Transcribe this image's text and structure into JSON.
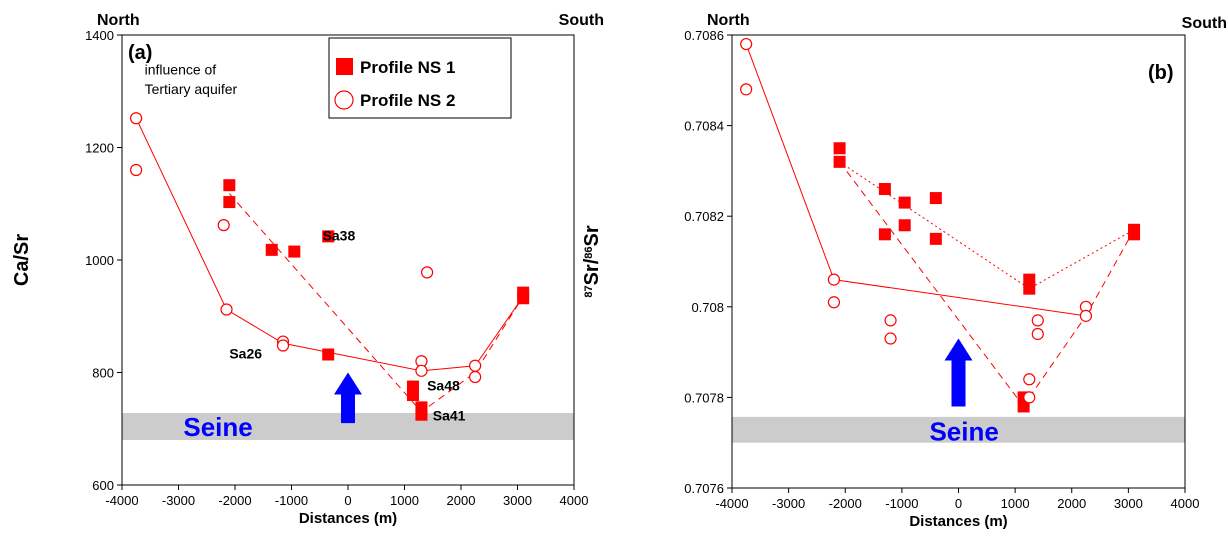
{
  "colors": {
    "data": "#ff0000",
    "seine_band": "#cccccc",
    "arrow": "#0000ff"
  },
  "legend": {
    "items": [
      "Profile NS 1",
      "Profile NS 2"
    ]
  },
  "chart_data": [
    {
      "type": "scatter",
      "panel_label": "(a)",
      "corner_left": "North",
      "corner_right": "South",
      "xlabel": "Distances (m)",
      "ylabel": "Ca/Sr",
      "xlim": [
        -4000,
        4000
      ],
      "ylim": [
        600,
        1400
      ],
      "xticks": [
        -4000,
        -3000,
        -2000,
        -1000,
        0,
        1000,
        2000,
        3000,
        4000
      ],
      "yticks": [
        600,
        800,
        1000,
        1200,
        1400
      ],
      "xtick_labels": [
        "-4000",
        "-3000",
        "-2000",
        "-1000",
        "0",
        "1000",
        "2000",
        "3000",
        "4000"
      ],
      "ytick_labels": [
        "600",
        "800",
        "1000",
        "1200",
        "1400"
      ],
      "seine_band": [
        680,
        728
      ],
      "seine_label": "Seine",
      "arrow": {
        "x": 0,
        "y_from": 710,
        "y_to": 800
      },
      "series": [
        {
          "marker": "square",
          "points": [
            [
              -2100,
              1133
            ],
            [
              -2100,
              1103
            ],
            [
              -1350,
              1018
            ],
            [
              -950,
              1015
            ],
            [
              -350,
              1042
            ],
            [
              -350,
              832
            ],
            [
              1150,
              775
            ],
            [
              1150,
              760
            ],
            [
              1300,
              738
            ],
            [
              1300,
              725
            ],
            [
              3100,
              942
            ],
            [
              3100,
              932
            ]
          ]
        },
        {
          "marker": "circle",
          "points": [
            [
              -3750,
              1252
            ],
            [
              -3750,
              1160
            ],
            [
              -2200,
              1062
            ],
            [
              -2150,
              912
            ],
            [
              -1150,
              855
            ],
            [
              -1150,
              848
            ],
            [
              1300,
              820
            ],
            [
              1300,
              803
            ],
            [
              1400,
              978
            ],
            [
              2250,
              812
            ],
            [
              2250,
              792
            ]
          ]
        }
      ],
      "lines": [
        {
          "style": "solid",
          "points": [
            [
              -3750,
              1252
            ],
            [
              -2150,
              912
            ],
            [
              -1150,
              852
            ],
            [
              1300,
              803
            ],
            [
              2250,
              812
            ],
            [
              3100,
              935
            ]
          ]
        },
        {
          "style": "dashed",
          "points": [
            [
              -2100,
              1118
            ],
            [
              1300,
              730
            ],
            [
              2250,
              800
            ],
            [
              3100,
              935
            ]
          ]
        }
      ],
      "annotations": [
        {
          "text": "influence of",
          "x": -3600,
          "y": 1330,
          "bold": false
        },
        {
          "text": "Tertiary aquifer",
          "x": -3600,
          "y": 1295,
          "bold": false
        },
        {
          "text": "Sa38",
          "x": -450,
          "y": 1035,
          "bold": true
        },
        {
          "text": "Sa26",
          "x": -2100,
          "y": 825,
          "bold": true
        },
        {
          "text": "Sa48",
          "x": 1400,
          "y": 768,
          "bold": true
        },
        {
          "text": "Sa41",
          "x": 1500,
          "y": 715,
          "bold": true
        }
      ]
    },
    {
      "type": "scatter",
      "panel_label": "(b)",
      "corner_left": "North",
      "corner_right": "South",
      "xlabel": "Distances (m)",
      "ylabel_pre": "87",
      "ylabel_mid": "Sr/",
      "ylabel_sup": "86",
      "ylabel_post": "Sr",
      "xlim": [
        -4000,
        4000
      ],
      "ylim": [
        0.7076,
        0.7086
      ],
      "xticks": [
        -4000,
        -3000,
        -2000,
        -1000,
        0,
        1000,
        2000,
        3000,
        4000
      ],
      "yticks": [
        0.7076,
        0.7078,
        0.708,
        0.7082,
        0.7084,
        0.7086
      ],
      "xtick_labels": [
        "-4000",
        "-3000",
        "-2000",
        "-1000",
        "0",
        "1000",
        "2000",
        "3000",
        "4000"
      ],
      "ytick_labels": [
        "0.7076",
        "0.7078",
        "0.708",
        "0.7082",
        "0.7084",
        "0.7086"
      ],
      "seine_band": [
        0.7077,
        0.707757
      ],
      "seine_label": "Seine",
      "arrow": {
        "x": 0,
        "y_from": 0.70778,
        "y_to": 0.70793
      },
      "series": [
        {
          "marker": "square",
          "points": [
            [
              -2100,
              0.70835
            ],
            [
              -2100,
              0.70832
            ],
            [
              -1300,
              0.70826
            ],
            [
              -1300,
              0.70816
            ],
            [
              -950,
              0.70823
            ],
            [
              -950,
              0.70818
            ],
            [
              -400,
              0.70824
            ],
            [
              -400,
              0.70815
            ],
            [
              1150,
              0.7078
            ],
            [
              1150,
              0.70778
            ],
            [
              1250,
              0.70806
            ],
            [
              1250,
              0.70804
            ],
            [
              3100,
              0.70817
            ],
            [
              3100,
              0.70816
            ]
          ]
        },
        {
          "marker": "circle",
          "points": [
            [
              -3750,
              0.70858
            ],
            [
              -3750,
              0.70848
            ],
            [
              -2200,
              0.70806
            ],
            [
              -2200,
              0.70801
            ],
            [
              -1200,
              0.70797
            ],
            [
              -1200,
              0.70793
            ],
            [
              1250,
              0.70784
            ],
            [
              1250,
              0.7078
            ],
            [
              1400,
              0.70797
            ],
            [
              1400,
              0.70794
            ],
            [
              2250,
              0.708
            ],
            [
              2250,
              0.70798
            ]
          ]
        }
      ],
      "lines": [
        {
          "style": "solid",
          "points": [
            [
              -3750,
              0.70858
            ],
            [
              -2200,
              0.70806
            ],
            [
              2250,
              0.70798
            ]
          ]
        },
        {
          "style": "dotted",
          "points": [
            [
              -2100,
              0.70832
            ],
            [
              1250,
              0.70804
            ],
            [
              3100,
              0.70817
            ]
          ]
        },
        {
          "style": "dashed",
          "points": [
            [
              -2100,
              0.70832
            ],
            [
              1150,
              0.70778
            ]
          ]
        },
        {
          "style": "dashed",
          "points": [
            [
              1250,
              0.7078
            ],
            [
              2250,
              0.70798
            ],
            [
              3100,
              0.70817
            ]
          ]
        }
      ]
    }
  ]
}
